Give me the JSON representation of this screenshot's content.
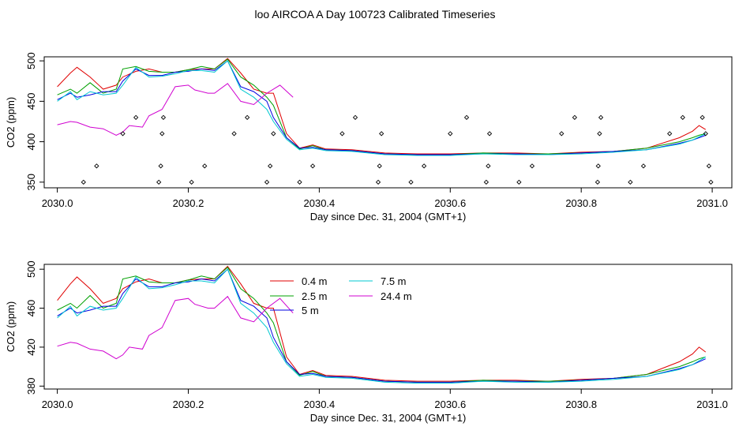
{
  "title": "loo AIRCOA A  Day 100723  Calibrated Timeseries",
  "colors": {
    "0.4 m": "#e00000",
    "2.5 m": "#00a000",
    "5 m": "#0000e0",
    "7.5 m": "#00c8d0",
    "24.4 m": "#d000d0"
  },
  "chart_data": [
    {
      "type": "line",
      "xlabel": "Day since Dec. 31, 2004 (GMT+1)",
      "ylabel": "CO2 (ppm)",
      "xlim": [
        2029.98,
        2031.03
      ],
      "ylim": [
        343,
        505
      ],
      "xticks": [
        2030.0,
        2030.2,
        2030.4,
        2030.6,
        2030.8,
        2031.0
      ],
      "xtick_labels": [
        "2030.0",
        "2030.2",
        "2030.4",
        "2030.6",
        "2030.8",
        "2031.0"
      ],
      "yticks": [
        350,
        400,
        450,
        500
      ],
      "ytick_labels": [
        "350",
        "400",
        "450",
        "500"
      ],
      "series": [
        {
          "name": "0.4 m",
          "color": "#e00000",
          "x": [
            2030.0,
            2030.02,
            2030.03,
            2030.05,
            2030.07,
            2030.09,
            2030.1,
            2030.12,
            2030.14,
            2030.16,
            2030.18,
            2030.2,
            2030.22,
            2030.24,
            2030.26,
            2030.28,
            2030.3,
            2030.32,
            2030.33,
            2030.35,
            2030.37,
            2030.39,
            2030.41,
            2030.45,
            2030.5,
            2030.55,
            2030.6,
            2030.65,
            2030.7,
            2030.75,
            2030.8,
            2030.85,
            2030.9,
            2030.95,
            2030.97,
            2030.98,
            2030.99
          ],
          "y": [
            468,
            485,
            492,
            480,
            465,
            470,
            480,
            487,
            490,
            486,
            486,
            489,
            490,
            490,
            503,
            485,
            465,
            460,
            460,
            410,
            392,
            396,
            391,
            390,
            386,
            385,
            385,
            386,
            386,
            385,
            387,
            388,
            392,
            405,
            413,
            420,
            415
          ]
        },
        {
          "name": "2.5 m",
          "color": "#00a000",
          "x": [
            2030.0,
            2030.02,
            2030.03,
            2030.05,
            2030.07,
            2030.09,
            2030.1,
            2030.12,
            2030.14,
            2030.16,
            2030.18,
            2030.2,
            2030.22,
            2030.24,
            2030.26,
            2030.28,
            2030.3,
            2030.32,
            2030.33,
            2030.35,
            2030.37,
            2030.39,
            2030.41,
            2030.45,
            2030.5,
            2030.55,
            2030.6,
            2030.65,
            2030.7,
            2030.75,
            2030.8,
            2030.85,
            2030.9,
            2030.95,
            2030.97,
            2030.98,
            2030.99
          ],
          "y": [
            458,
            465,
            460,
            473,
            460,
            465,
            490,
            493,
            487,
            486,
            486,
            489,
            493,
            490,
            502,
            480,
            470,
            455,
            445,
            405,
            391,
            395,
            390,
            389,
            385,
            384,
            384,
            386,
            385,
            385,
            386,
            388,
            392,
            400,
            405,
            408,
            410
          ]
        },
        {
          "name": "5 m",
          "color": "#0000e0",
          "x": [
            2030.0,
            2030.02,
            2030.03,
            2030.05,
            2030.07,
            2030.09,
            2030.1,
            2030.12,
            2030.14,
            2030.16,
            2030.18,
            2030.2,
            2030.22,
            2030.24,
            2030.26,
            2030.28,
            2030.3,
            2030.32,
            2030.33,
            2030.35,
            2030.37,
            2030.39,
            2030.41,
            2030.45,
            2030.5,
            2030.55,
            2030.6,
            2030.65,
            2030.7,
            2030.75,
            2030.8,
            2030.85,
            2030.9,
            2030.95,
            2030.97,
            2030.98,
            2030.99
          ],
          "y": [
            452,
            460,
            455,
            458,
            462,
            462,
            475,
            490,
            482,
            482,
            486,
            487,
            490,
            488,
            500,
            468,
            462,
            450,
            430,
            405,
            392,
            393,
            390,
            389,
            385,
            384,
            384,
            385,
            385,
            384,
            386,
            388,
            390,
            398,
            402,
            405,
            408
          ]
        },
        {
          "name": "7.5 m",
          "color": "#00c8d0",
          "x": [
            2030.0,
            2030.02,
            2030.03,
            2030.05,
            2030.07,
            2030.09,
            2030.1,
            2030.12,
            2030.14,
            2030.16,
            2030.18,
            2030.2,
            2030.22,
            2030.24,
            2030.26,
            2030.28,
            2030.3,
            2030.32,
            2030.33,
            2030.35,
            2030.37,
            2030.39,
            2030.41,
            2030.45,
            2030.5,
            2030.55,
            2030.6,
            2030.65,
            2030.7,
            2030.75,
            2030.8,
            2030.85,
            2030.9,
            2030.95,
            2030.97,
            2030.98,
            2030.99
          ],
          "y": [
            450,
            462,
            452,
            462,
            458,
            460,
            470,
            492,
            480,
            481,
            484,
            488,
            488,
            486,
            500,
            465,
            455,
            440,
            425,
            403,
            390,
            392,
            389,
            388,
            384,
            383,
            383,
            385,
            384,
            384,
            385,
            387,
            390,
            397,
            402,
            406,
            410
          ]
        },
        {
          "name": "24.4 m",
          "color": "#d000d0",
          "x": [
            2030.0,
            2030.02,
            2030.03,
            2030.05,
            2030.07,
            2030.09,
            2030.1,
            2030.11,
            2030.13,
            2030.14,
            2030.16,
            2030.18,
            2030.2,
            2030.21,
            2030.23,
            2030.24,
            2030.26,
            2030.28,
            2030.3,
            2030.32,
            2030.34,
            2030.36
          ],
          "y": [
            421,
            425,
            424,
            418,
            416,
            408,
            412,
            420,
            418,
            432,
            440,
            468,
            470,
            464,
            460,
            460,
            472,
            450,
            446,
            460,
            470,
            455
          ]
        }
      ],
      "points": {
        "x": [
          2030.04,
          2030.06,
          2030.1,
          2030.12,
          2030.155,
          2030.158,
          2030.16,
          2030.162,
          2030.205,
          2030.225,
          2030.27,
          2030.29,
          2030.32,
          2030.325,
          2030.33,
          2030.37,
          2030.39,
          2030.435,
          2030.455,
          2030.49,
          2030.492,
          2030.495,
          2030.54,
          2030.56,
          2030.6,
          2030.625,
          2030.655,
          2030.658,
          2030.66,
          2030.705,
          2030.725,
          2030.77,
          2030.79,
          2030.825,
          2030.826,
          2030.828,
          2030.83,
          2030.875,
          2030.895,
          2030.935,
          2030.955,
          2030.985,
          2030.99,
          2030.995,
          2030.998
        ],
        "y": [
          350,
          370,
          410,
          430,
          350,
          370,
          410,
          430,
          350,
          370,
          410,
          430,
          350,
          370,
          410,
          350,
          370,
          410,
          430,
          350,
          370,
          410,
          350,
          370,
          410,
          430,
          350,
          370,
          410,
          350,
          370,
          410,
          430,
          350,
          370,
          410,
          430,
          350,
          370,
          410,
          430,
          430,
          410,
          370,
          350
        ]
      }
    },
    {
      "type": "line",
      "xlabel": "Day since Dec. 31, 2004 (GMT+1)",
      "ylabel": "CO2 (ppm)",
      "xlim": [
        2029.98,
        2031.03
      ],
      "ylim": [
        377,
        505
      ],
      "xticks": [
        2030.0,
        2030.2,
        2030.4,
        2030.6,
        2030.8,
        2031.0
      ],
      "xtick_labels": [
        "2030.0",
        "2030.2",
        "2030.4",
        "2030.6",
        "2030.8",
        "2031.0"
      ],
      "yticks": [
        380,
        420,
        460,
        500
      ],
      "ytick_labels": [
        "380",
        "420",
        "460",
        "500"
      ],
      "legend": {
        "entries": [
          "0.4 m",
          "2.5 m",
          "5 m",
          "7.5 m",
          "24.4 m"
        ],
        "layout": "two-column"
      },
      "series": [
        {
          "name": "0.4 m",
          "color": "#e00000",
          "x": [
            2030.0,
            2030.02,
            2030.03,
            2030.05,
            2030.07,
            2030.09,
            2030.1,
            2030.12,
            2030.14,
            2030.16,
            2030.18,
            2030.2,
            2030.22,
            2030.24,
            2030.26,
            2030.28,
            2030.3,
            2030.32,
            2030.33,
            2030.35,
            2030.37,
            2030.39,
            2030.41,
            2030.45,
            2030.5,
            2030.55,
            2030.6,
            2030.65,
            2030.7,
            2030.75,
            2030.8,
            2030.85,
            2030.9,
            2030.95,
            2030.97,
            2030.98,
            2030.99
          ],
          "y": [
            468,
            485,
            492,
            480,
            465,
            470,
            480,
            487,
            490,
            486,
            486,
            489,
            490,
            490,
            503,
            485,
            465,
            460,
            460,
            410,
            392,
            396,
            391,
            390,
            386,
            385,
            385,
            386,
            386,
            385,
            387,
            388,
            392,
            405,
            413,
            420,
            415
          ]
        },
        {
          "name": "2.5 m",
          "color": "#00a000",
          "x": [
            2030.0,
            2030.02,
            2030.03,
            2030.05,
            2030.07,
            2030.09,
            2030.1,
            2030.12,
            2030.14,
            2030.16,
            2030.18,
            2030.2,
            2030.22,
            2030.24,
            2030.26,
            2030.28,
            2030.3,
            2030.32,
            2030.33,
            2030.35,
            2030.37,
            2030.39,
            2030.41,
            2030.45,
            2030.5,
            2030.55,
            2030.6,
            2030.65,
            2030.7,
            2030.75,
            2030.8,
            2030.85,
            2030.9,
            2030.95,
            2030.97,
            2030.98,
            2030.99
          ],
          "y": [
            458,
            465,
            460,
            473,
            460,
            465,
            490,
            493,
            487,
            486,
            486,
            489,
            493,
            490,
            502,
            480,
            470,
            455,
            445,
            405,
            391,
            395,
            390,
            389,
            385,
            384,
            384,
            386,
            385,
            385,
            386,
            388,
            392,
            400,
            405,
            408,
            410
          ]
        },
        {
          "name": "5 m",
          "color": "#0000e0",
          "x": [
            2030.0,
            2030.02,
            2030.03,
            2030.05,
            2030.07,
            2030.09,
            2030.1,
            2030.12,
            2030.14,
            2030.16,
            2030.18,
            2030.2,
            2030.22,
            2030.24,
            2030.26,
            2030.28,
            2030.3,
            2030.32,
            2030.33,
            2030.35,
            2030.37,
            2030.39,
            2030.41,
            2030.45,
            2030.5,
            2030.55,
            2030.6,
            2030.65,
            2030.7,
            2030.75,
            2030.8,
            2030.85,
            2030.9,
            2030.95,
            2030.97,
            2030.98,
            2030.99
          ],
          "y": [
            452,
            460,
            455,
            458,
            462,
            462,
            475,
            490,
            482,
            482,
            486,
            487,
            490,
            488,
            500,
            468,
            462,
            450,
            430,
            405,
            392,
            393,
            390,
            389,
            385,
            384,
            384,
            385,
            385,
            384,
            386,
            388,
            390,
            398,
            402,
            405,
            408
          ]
        },
        {
          "name": "7.5 m",
          "color": "#00c8d0",
          "x": [
            2030.0,
            2030.02,
            2030.03,
            2030.05,
            2030.07,
            2030.09,
            2030.1,
            2030.12,
            2030.14,
            2030.16,
            2030.18,
            2030.2,
            2030.22,
            2030.24,
            2030.26,
            2030.28,
            2030.3,
            2030.32,
            2030.33,
            2030.35,
            2030.37,
            2030.39,
            2030.41,
            2030.45,
            2030.5,
            2030.55,
            2030.6,
            2030.65,
            2030.7,
            2030.75,
            2030.8,
            2030.85,
            2030.9,
            2030.95,
            2030.97,
            2030.98,
            2030.99
          ],
          "y": [
            450,
            462,
            452,
            462,
            458,
            460,
            470,
            492,
            480,
            481,
            484,
            488,
            488,
            486,
            500,
            465,
            455,
            440,
            425,
            403,
            390,
            392,
            389,
            388,
            384,
            383,
            383,
            385,
            384,
            384,
            385,
            387,
            390,
            397,
            402,
            406,
            410
          ]
        },
        {
          "name": "24.4 m",
          "color": "#d000d0",
          "x": [
            2030.0,
            2030.02,
            2030.03,
            2030.05,
            2030.07,
            2030.09,
            2030.1,
            2030.11,
            2030.13,
            2030.14,
            2030.16,
            2030.18,
            2030.2,
            2030.21,
            2030.23,
            2030.24,
            2030.26,
            2030.28,
            2030.3,
            2030.32,
            2030.34,
            2030.36
          ],
          "y": [
            421,
            425,
            424,
            418,
            416,
            408,
            412,
            420,
            418,
            432,
            440,
            468,
            470,
            464,
            460,
            460,
            472,
            450,
            446,
            460,
            470,
            455
          ]
        }
      ]
    }
  ]
}
